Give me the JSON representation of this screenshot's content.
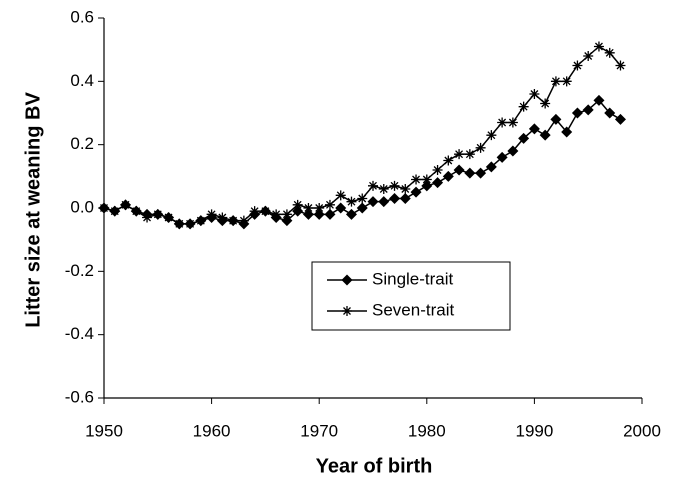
{
  "chart_data": {
    "type": "line",
    "x_label": "Year of birth",
    "y_label": "Litter size at weaning BV",
    "x": [
      1950,
      1951,
      1952,
      1953,
      1954,
      1955,
      1956,
      1957,
      1958,
      1959,
      1960,
      1961,
      1962,
      1963,
      1964,
      1965,
      1966,
      1967,
      1968,
      1969,
      1970,
      1971,
      1972,
      1973,
      1974,
      1975,
      1976,
      1977,
      1978,
      1979,
      1980,
      1981,
      1982,
      1983,
      1984,
      1985,
      1986,
      1987,
      1988,
      1989,
      1990,
      1991,
      1992,
      1993,
      1994,
      1995,
      1996,
      1997,
      1998
    ],
    "series": [
      {
        "name": "Single-trait",
        "color": "#000000",
        "marker": "diamond",
        "values": [
          0.0,
          -0.01,
          0.01,
          -0.01,
          -0.02,
          -0.02,
          -0.03,
          -0.05,
          -0.05,
          -0.04,
          -0.03,
          -0.04,
          -0.04,
          -0.05,
          -0.02,
          -0.01,
          -0.03,
          -0.04,
          -0.01,
          -0.02,
          -0.02,
          -0.02,
          0.0,
          -0.02,
          0.0,
          0.02,
          0.02,
          0.03,
          0.03,
          0.05,
          0.07,
          0.08,
          0.1,
          0.12,
          0.11,
          0.11,
          0.13,
          0.16,
          0.18,
          0.22,
          0.25,
          0.23,
          0.28,
          0.24,
          0.3,
          0.31,
          0.34,
          0.3,
          0.28
        ]
      },
      {
        "name": "Seven-trait",
        "color": "#000000",
        "marker": "asterisk",
        "values": [
          0.0,
          -0.01,
          0.01,
          -0.01,
          -0.03,
          -0.02,
          -0.03,
          -0.05,
          -0.05,
          -0.04,
          -0.02,
          -0.03,
          -0.04,
          -0.04,
          -0.01,
          -0.01,
          -0.02,
          -0.02,
          0.01,
          0.0,
          0.0,
          0.01,
          0.04,
          0.02,
          0.03,
          0.07,
          0.06,
          0.07,
          0.06,
          0.09,
          0.09,
          0.12,
          0.15,
          0.17,
          0.17,
          0.19,
          0.23,
          0.27,
          0.27,
          0.32,
          0.36,
          0.33,
          0.4,
          0.4,
          0.45,
          0.48,
          0.51,
          0.49,
          0.45
        ]
      }
    ],
    "xlim": [
      1950,
      2000
    ],
    "xticks": [
      1950,
      1960,
      1970,
      1980,
      1990,
      2000
    ],
    "ylim": [
      -0.6,
      0.6
    ],
    "yticks": [
      {
        "value": -0.6,
        "label": "-0.6"
      },
      {
        "value": -0.4,
        "label": "-0.4"
      },
      {
        "value": -0.2,
        "label": "-0.2"
      },
      {
        "value": 0,
        "label": "0.0"
      },
      {
        "value": 0.2,
        "label": "0.2"
      },
      {
        "value": 0.4,
        "label": "0.4"
      },
      {
        "value": 0.6,
        "label": "0.6"
      }
    ],
    "grid": false
  }
}
